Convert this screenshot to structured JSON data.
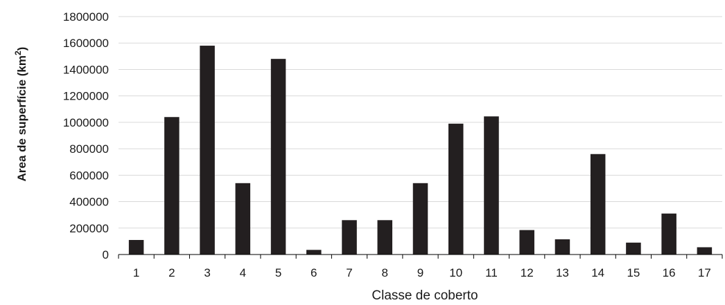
{
  "chart_data": {
    "type": "bar",
    "categories": [
      "1",
      "2",
      "3",
      "4",
      "5",
      "6",
      "7",
      "8",
      "9",
      "10",
      "11",
      "12",
      "13",
      "14",
      "15",
      "16",
      "17"
    ],
    "values": [
      110000,
      1040000,
      1580000,
      540000,
      1480000,
      35000,
      260000,
      260000,
      540000,
      990000,
      1045000,
      185000,
      115000,
      760000,
      90000,
      310000,
      55000
    ],
    "ylim": [
      0,
      1800000
    ],
    "yticks": [
      "0",
      "200000",
      "400000",
      "600000",
      "800000",
      "1000000",
      "1200000",
      "1400000",
      "1600000",
      "1800000"
    ],
    "xlabel": "Classe de coberto",
    "ylabel": "Area de superfície (km",
    "ylabel_superscript": "2",
    "ylabel_suffix": ")",
    "grid": true,
    "colors": {
      "bar": "#231f20",
      "grid": "#d9d9d9",
      "axis": "#000000"
    }
  }
}
